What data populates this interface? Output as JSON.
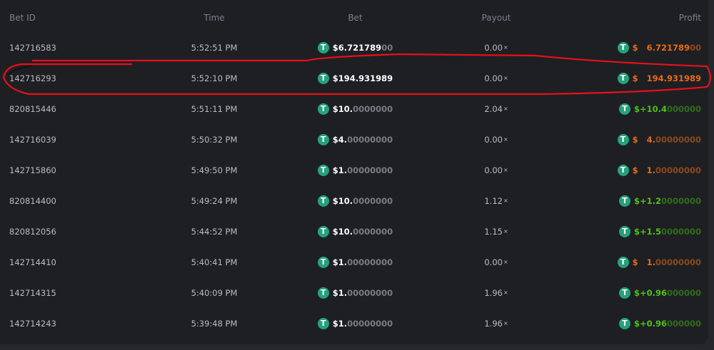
{
  "headers": {
    "bet_id": "Bet ID",
    "time": "Time",
    "bet": "Bet",
    "payout": "Payout",
    "profit": "Profit"
  },
  "colors": {
    "coin": "#26a17b",
    "loss": "#e86a17",
    "win": "#4fc11a",
    "annotation": "#e8101a"
  },
  "coin_icon": "tether-usdt-icon",
  "rows": [
    {
      "id": "142716583",
      "time": "5:52:51 PM",
      "bet_main": "$6.721789",
      "bet_dim": "00",
      "payout": "0.00",
      "x": "×",
      "profit_type": "loss",
      "profit_cur": "$",
      "profit_main": "6.721789",
      "profit_dim": "00"
    },
    {
      "id": "142716293",
      "time": "5:52:10 PM",
      "bet_main": "$194.931989",
      "bet_dim": "",
      "payout": "0.00",
      "x": "×",
      "profit_type": "loss",
      "profit_cur": "$",
      "profit_main": "194.931989",
      "profit_dim": ""
    },
    {
      "id": "820815446",
      "time": "5:51:11 PM",
      "bet_main": "$10.",
      "bet_dim": "0000000",
      "payout": "2.04",
      "x": "×",
      "profit_type": "win",
      "profit_cur": "$+",
      "profit_main": "10.4",
      "profit_dim": "000000"
    },
    {
      "id": "142716039",
      "time": "5:50:32 PM",
      "bet_main": "$4.",
      "bet_dim": "00000000",
      "payout": "0.00",
      "x": "×",
      "profit_type": "loss",
      "profit_cur": "$",
      "profit_main": "4.",
      "profit_dim": "00000000"
    },
    {
      "id": "142715860",
      "time": "5:49:50 PM",
      "bet_main": "$1.",
      "bet_dim": "00000000",
      "payout": "0.00",
      "x": "×",
      "profit_type": "loss",
      "profit_cur": "$",
      "profit_main": "1.",
      "profit_dim": "00000000"
    },
    {
      "id": "820814400",
      "time": "5:49:24 PM",
      "bet_main": "$10.",
      "bet_dim": "0000000",
      "payout": "1.12",
      "x": "×",
      "profit_type": "win",
      "profit_cur": "$+",
      "profit_main": "1.2",
      "profit_dim": "0000000"
    },
    {
      "id": "820812056",
      "time": "5:44:52 PM",
      "bet_main": "$10.",
      "bet_dim": "0000000",
      "payout": "1.15",
      "x": "×",
      "profit_type": "win",
      "profit_cur": "$+",
      "profit_main": "1.5",
      "profit_dim": "0000000"
    },
    {
      "id": "142714410",
      "time": "5:40:41 PM",
      "bet_main": "$1.",
      "bet_dim": "00000000",
      "payout": "0.00",
      "x": "×",
      "profit_type": "loss",
      "profit_cur": "$",
      "profit_main": "1.",
      "profit_dim": "00000000"
    },
    {
      "id": "142714315",
      "time": "5:40:09 PM",
      "bet_main": "$1.",
      "bet_dim": "00000000",
      "payout": "1.96",
      "x": "×",
      "profit_type": "win",
      "profit_cur": "$+",
      "profit_main": "0.96",
      "profit_dim": "000000"
    },
    {
      "id": "142714243",
      "time": "5:39:48 PM",
      "bet_main": "$1.",
      "bet_dim": "00000000",
      "payout": "1.96",
      "x": "×",
      "profit_type": "win",
      "profit_cur": "$+",
      "profit_main": "0.96",
      "profit_dim": "000000"
    }
  ]
}
